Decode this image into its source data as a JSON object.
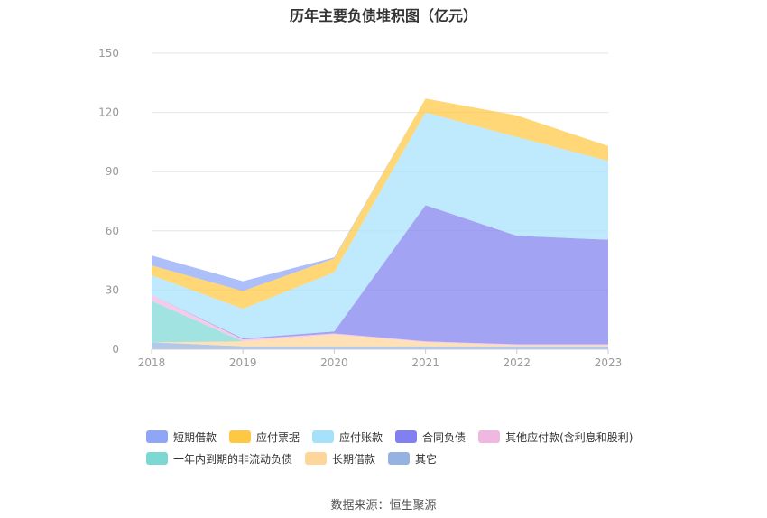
{
  "chart_data": {
    "type": "area",
    "title": "历年主要负债堆积图（亿元）",
    "stacked": true,
    "categories": [
      "2018",
      "2019",
      "2020",
      "2021",
      "2022",
      "2023"
    ],
    "ylim": [
      0,
      150
    ],
    "yticks": [
      0,
      30,
      60,
      90,
      120,
      150
    ],
    "grid": true,
    "legend_position": "bottom",
    "series": [
      {
        "name": "短期借款",
        "color": "#8ea6f5",
        "values": [
          5.0,
          5.0,
          0.5,
          0.0,
          0.0,
          0.0
        ]
      },
      {
        "name": "应付票据",
        "color": "#ffc842",
        "values": [
          5.0,
          9.0,
          7.0,
          7.0,
          11.0,
          7.5
        ]
      },
      {
        "name": "应付账款",
        "color": "#a6e1fb",
        "values": [
          10.0,
          15.0,
          30.0,
          47.0,
          50.0,
          40.0
        ]
      },
      {
        "name": "合同负债",
        "color": "#8080f0",
        "values": [
          0.0,
          0.5,
          1.0,
          69.0,
          55.0,
          53.0
        ]
      },
      {
        "name": "其他应付款(含利息和股利)",
        "color": "#f0b8e0",
        "values": [
          3.0,
          1.0,
          0.5,
          0.5,
          0.5,
          0.5
        ]
      },
      {
        "name": "一年内到期的非流动负债",
        "color": "#7dd8d4",
        "values": [
          21.0,
          0.0,
          0.0,
          0.0,
          0.0,
          0.0
        ]
      },
      {
        "name": "长期借款",
        "color": "#ffd699",
        "values": [
          0.0,
          2.5,
          6.0,
          2.0,
          0.5,
          0.5
        ]
      },
      {
        "name": "其它",
        "color": "#94b3e0",
        "values": [
          3.5,
          1.5,
          1.5,
          1.5,
          1.5,
          1.5
        ]
      }
    ]
  },
  "source_text": "数据来源：恒生聚源"
}
